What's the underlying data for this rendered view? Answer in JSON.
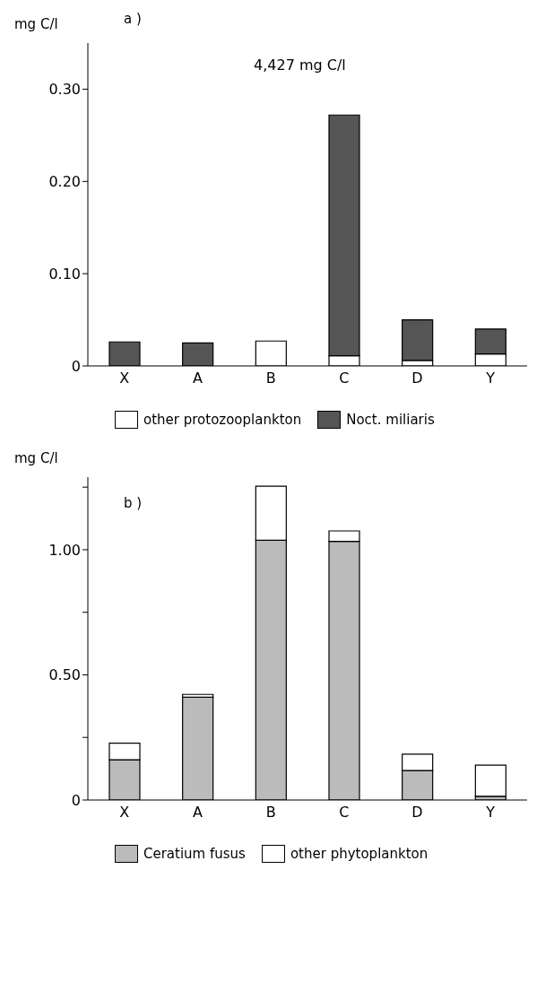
{
  "chart_data": [
    {
      "type": "bar",
      "title": "a )",
      "ylabel": "mg C/l",
      "categories": [
        "X",
        "A",
        "B",
        "C",
        "D",
        "Y"
      ],
      "stacked": true,
      "series": [
        {
          "name": "other protozooplankton",
          "color": "#ffffff",
          "values": [
            null,
            null,
            0.027,
            0.011,
            0.006,
            0.013
          ]
        },
        {
          "name": "Noct. miliaris",
          "color": "#555555",
          "values": [
            0.026,
            0.025,
            null,
            0.261,
            0.044,
            0.027
          ]
        }
      ],
      "ylim": [
        0,
        0.35
      ],
      "yticks": [
        0,
        {
          "value": 0.1,
          "label": "0.10"
        },
        {
          "value": 0.2,
          "label": "0.20"
        },
        {
          "value": 0.3,
          "label": "0.30"
        }
      ],
      "annotations": [
        "4,427 mg C/l"
      ],
      "grid": false,
      "legend": "bottom"
    },
    {
      "type": "bar",
      "title": "b )",
      "ylabel": "mg C/l",
      "categories": [
        "X",
        "A",
        "B",
        "C",
        "D",
        "Y"
      ],
      "stacked": true,
      "series": [
        {
          "name": "Ceratium fusus",
          "color": "#bbbbbb",
          "values": [
            0.161,
            0.411,
            1.038,
            1.033,
            0.118,
            0.015
          ]
        },
        {
          "name": "other phytoplankton",
          "color": "#ffffff",
          "values": [
            0.066,
            0.011,
            0.216,
            0.042,
            0.065,
            0.124
          ]
        }
      ],
      "ylim": [
        0,
        1.29
      ],
      "yticks": [
        0,
        {
          "value": 0.25,
          "label": null
        },
        {
          "value": 0.5,
          "label": "0.50"
        },
        {
          "value": 0.75,
          "label": null
        },
        {
          "value": 1,
          "label": "1.00"
        },
        {
          "value": 1.25,
          "label": null
        }
      ],
      "grid": false,
      "legend": "bottom"
    }
  ]
}
